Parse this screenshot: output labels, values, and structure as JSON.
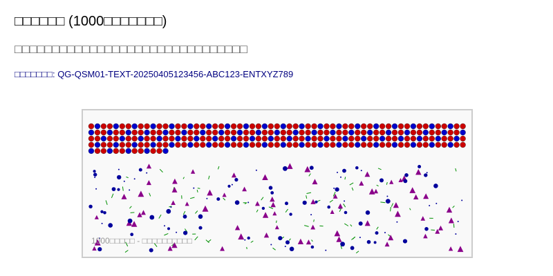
{
  "page": {
    "title": "□□□□□□ (1000□□□□□□□)",
    "subtitle": "□□□□□□□□□□□□□□□□□□□□□□□□□□□□□□□",
    "id_line": "□□□□□□□: QG-QSM01-TEXT-20250405123456-ABC123-ENTXYZ789"
  },
  "panel": {
    "caption": "1000□□□□□ - □□□□□□□□□□",
    "background": "#f9f9f9",
    "border_color": "#cccccc"
  },
  "dot_grid": {
    "columns": 61,
    "rows": 5,
    "last_row_count": 13,
    "colors": {
      "primary": "#cc0000",
      "secondary": "#0000cc"
    }
  },
  "scatter": {
    "shapes": [
      "circle",
      "triangle",
      "line",
      "point"
    ],
    "colors": {
      "circle": "#00009c",
      "triangle": "#8a008a",
      "line": "#009000",
      "point": "#00009c"
    },
    "counts": {
      "circle": 60,
      "triangle": 70,
      "line": 80,
      "point": 40
    }
  }
}
